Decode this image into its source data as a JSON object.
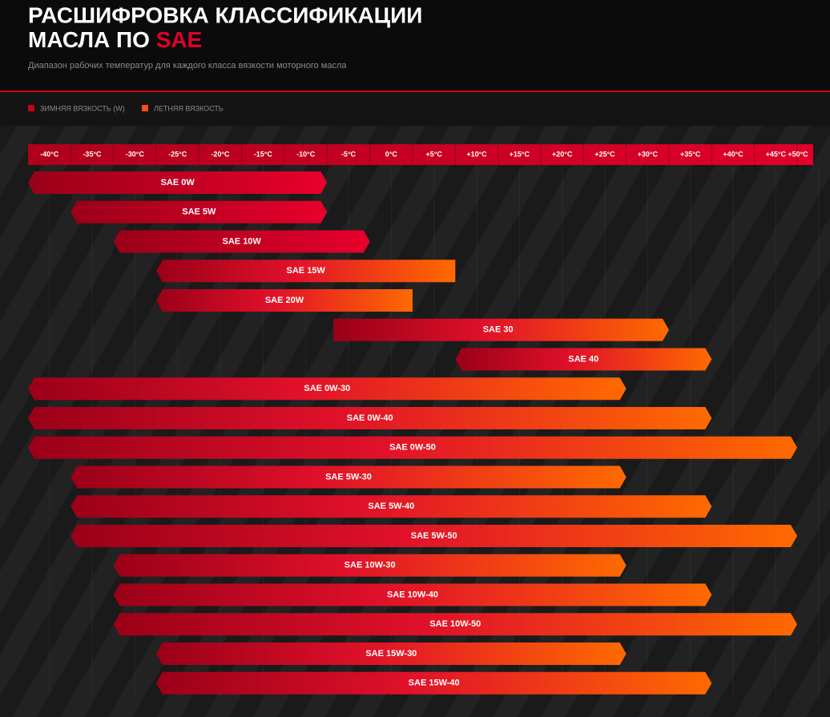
{
  "chart_data": {
    "type": "range-bar",
    "title": [
      "РАСШИФРОВКА КЛАССИФИКАЦИИ",
      "МАСЛА ПО"
    ],
    "title_highlight": "SAE",
    "subtitle": "Диапазон рабочих температур для каждого класса вязкости моторного масла",
    "legend": [
      {
        "name": "ЗИМНЯЯ ВЯЗКОСТЬ (W)",
        "color": "#c8001e"
      },
      {
        "name": "ЛЕТНЯЯ ВЯЗКОСТЬ",
        "color": "#ff4a1a"
      }
    ],
    "categories": [
      "SAE 0W",
      "SAE 5W",
      "SAE 10W",
      "SAE 15W",
      "SAE 20W",
      "SAE 30",
      "SAE 40",
      "SAE 0W-30",
      "SAE 0W-40",
      "SAE 0W-50",
      "SAE 5W-30",
      "SAE 5W-40",
      "SAE 5W-50",
      "SAE 10W-30",
      "SAE 10W-40",
      "SAE 10W-50",
      "SAE 15W-30",
      "SAE 15W-40"
    ],
    "start": [
      -40,
      -35,
      -30,
      -25,
      -25,
      -5,
      10,
      -40,
      -40,
      -40,
      -35,
      -35,
      -35,
      -30,
      -30,
      -30,
      -25,
      -25
    ],
    "end": [
      -10,
      -10,
      -5,
      5,
      0,
      30,
      35,
      25,
      35,
      45,
      25,
      35,
      45,
      25,
      35,
      45,
      25,
      35
    ],
    "xlim": [
      -42.5,
      47.5
    ],
    "xticks": [
      {
        "value": -40,
        "label": "-40°C"
      },
      {
        "value": -35,
        "label": "-35°C"
      },
      {
        "value": -30,
        "label": "-30°C"
      },
      {
        "value": -25,
        "label": "-25°C"
      },
      {
        "value": -20,
        "label": "-20°C"
      },
      {
        "value": -15,
        "label": "-15°C"
      },
      {
        "value": -10,
        "label": "-10°C"
      },
      {
        "value": -5,
        "label": "-5°C"
      },
      {
        "value": 0,
        "label": "0°C"
      },
      {
        "value": 5,
        "label": "+5°C"
      },
      {
        "value": 10,
        "label": "+10°C"
      },
      {
        "value": 15,
        "label": "+15°C"
      },
      {
        "value": 20,
        "label": "+20°C"
      },
      {
        "value": 25,
        "label": "+25°C"
      },
      {
        "value": 30,
        "label": "+30°C"
      },
      {
        "value": 35,
        "label": "+35°C"
      },
      {
        "value": 40,
        "label": "+40°C"
      },
      {
        "value": 45,
        "label": "+45°C"
      },
      {
        "value": 50,
        "label": "+50°C"
      }
    ]
  }
}
